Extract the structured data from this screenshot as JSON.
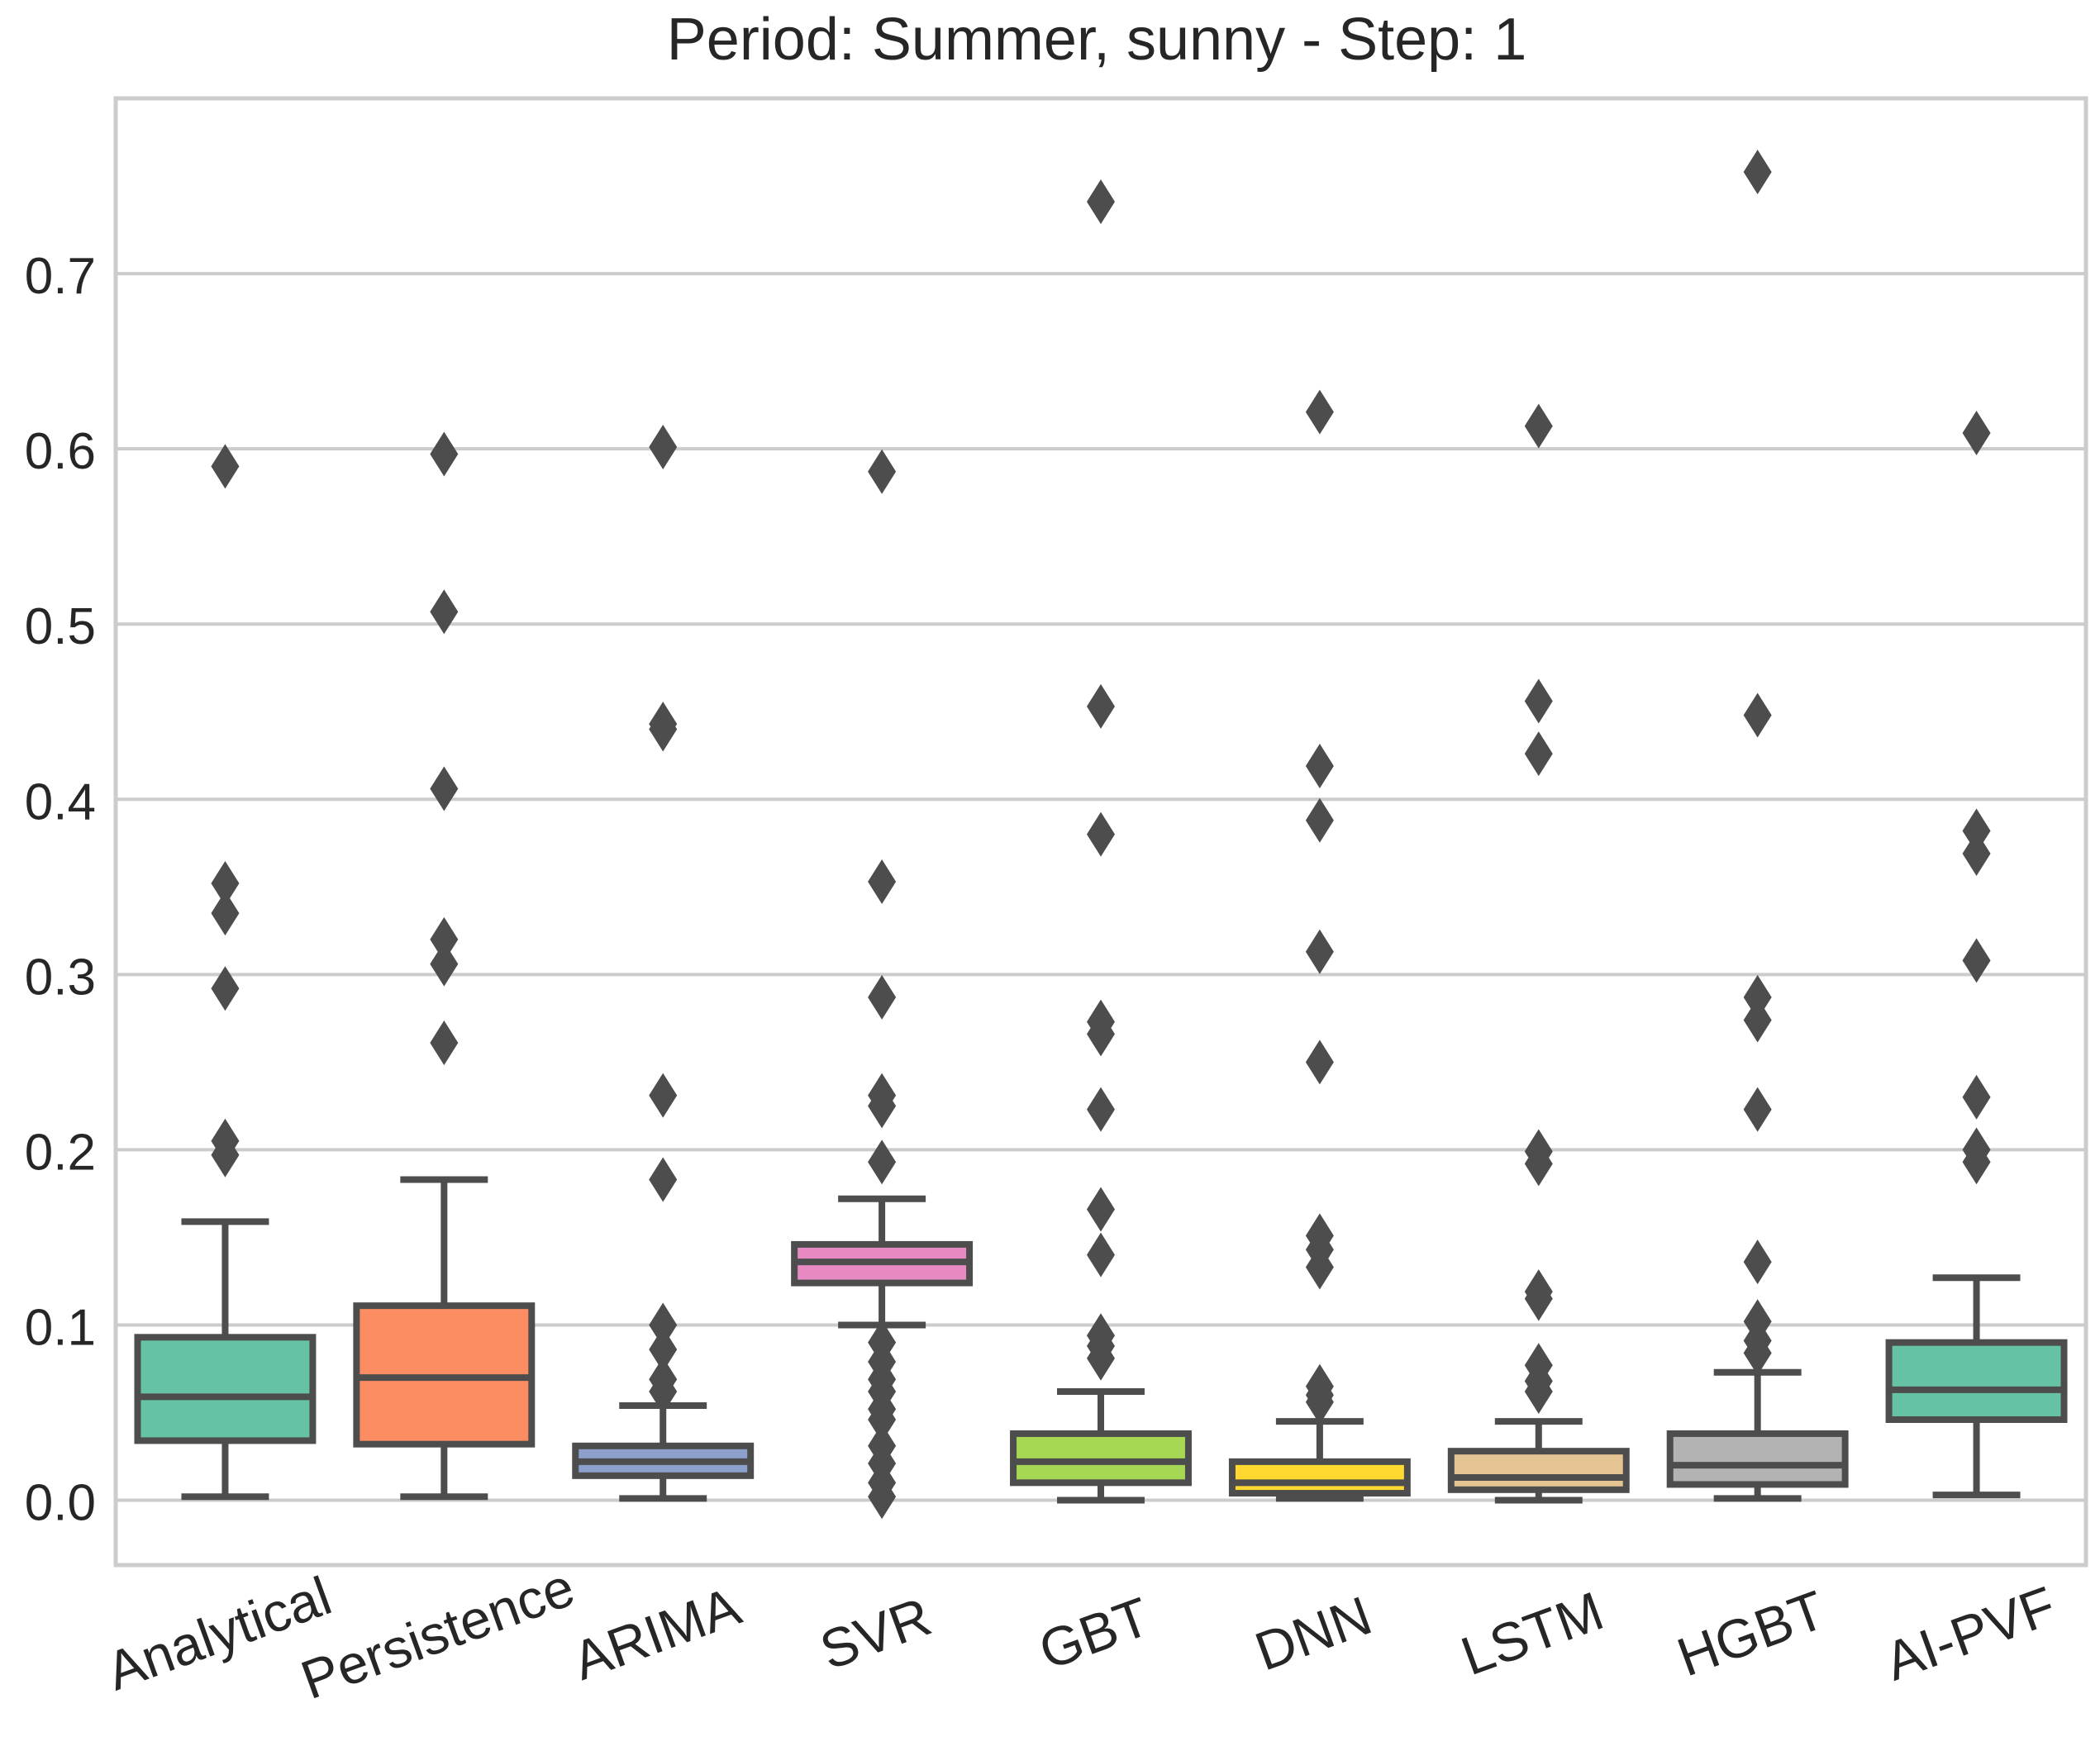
{
  "chart_data": {
    "type": "box",
    "title": "Period: Summer, sunny - Step: 1",
    "xlabel": "",
    "ylabel": "",
    "ylim": [
      -0.037,
      0.8
    ],
    "yticks": [
      0.0,
      0.1,
      0.2,
      0.3,
      0.4,
      0.5,
      0.6,
      0.7
    ],
    "ytick_labels": [
      "0.0",
      "0.1",
      "0.2",
      "0.3",
      "0.4",
      "0.5",
      "0.6",
      "0.7"
    ],
    "grid": "horizontal",
    "categories": [
      "Analytical",
      "Persistence",
      "ARIMA",
      "SVR",
      "GBT",
      "DNN",
      "LSTM",
      "HGBT",
      "AI-PVF"
    ],
    "series": [
      {
        "name": "Analytical",
        "color": "#66c2a5",
        "whisker_low": 0.002,
        "q1": 0.034,
        "median": 0.059,
        "q3": 0.093,
        "whisker_high": 0.159,
        "outliers": [
          0.59,
          0.352,
          0.335,
          0.292,
          0.205,
          0.197
        ]
      },
      {
        "name": "Persistence",
        "color": "#fc8d62",
        "whisker_low": 0.002,
        "q1": 0.032,
        "median": 0.07,
        "q3": 0.111,
        "whisker_high": 0.183,
        "outliers": [
          0.597,
          0.507,
          0.406,
          0.32,
          0.306,
          0.261
        ]
      },
      {
        "name": "ARIMA",
        "color": "#8da0cb",
        "whisker_low": 0.001,
        "q1": 0.014,
        "median": 0.022,
        "q3": 0.031,
        "whisker_high": 0.054,
        "outliers": [
          0.601,
          0.443,
          0.44,
          0.231,
          0.183,
          0.1,
          0.086,
          0.069,
          0.062
        ]
      },
      {
        "name": "SVR",
        "color": "#e78ac3",
        "whisker_low": 0.1,
        "q1": 0.124,
        "median": 0.136,
        "q3": 0.146,
        "whisker_high": 0.172,
        "outliers": [
          0.587,
          0.353,
          0.287,
          0.231,
          0.225,
          0.193,
          0.09,
          0.079,
          0.069,
          0.062,
          0.052,
          0.046,
          0.031,
          0.021,
          0.01,
          0.002
        ]
      },
      {
        "name": "GBT",
        "color": "#a6d854",
        "whisker_low": 0.0,
        "q1": 0.01,
        "median": 0.022,
        "q3": 0.038,
        "whisker_high": 0.062,
        "outliers": [
          0.741,
          0.453,
          0.38,
          0.273,
          0.266,
          0.223,
          0.166,
          0.14,
          0.094,
          0.088,
          0.081
        ]
      },
      {
        "name": "DNN",
        "color": "#ffd92f",
        "whisker_low": 0.001,
        "q1": 0.004,
        "median": 0.01,
        "q3": 0.022,
        "whisker_high": 0.045,
        "outliers": [
          0.621,
          0.419,
          0.388,
          0.313,
          0.25,
          0.151,
          0.143,
          0.133,
          0.065,
          0.06,
          0.056
        ]
      },
      {
        "name": "LSTM",
        "color": "#e5c494",
        "whisker_low": 0.0,
        "q1": 0.006,
        "median": 0.013,
        "q3": 0.028,
        "whisker_high": 0.045,
        "outliers": [
          0.613,
          0.456,
          0.426,
          0.199,
          0.192,
          0.119,
          0.115,
          0.077,
          0.068,
          0.062
        ]
      },
      {
        "name": "HGBT",
        "color": "#b3b3b3",
        "whisker_low": 0.001,
        "q1": 0.009,
        "median": 0.02,
        "q3": 0.038,
        "whisker_high": 0.073,
        "outliers": [
          0.758,
          0.448,
          0.287,
          0.274,
          0.223,
          0.136,
          0.102,
          0.091,
          0.084
        ]
      },
      {
        "name": "AI-PVF",
        "color": "#66c2a5",
        "whisker_low": 0.003,
        "q1": 0.046,
        "median": 0.063,
        "q3": 0.09,
        "whisker_high": 0.127,
        "outliers": [
          0.609,
          0.382,
          0.369,
          0.308,
          0.23,
          0.2,
          0.193
        ]
      }
    ]
  }
}
